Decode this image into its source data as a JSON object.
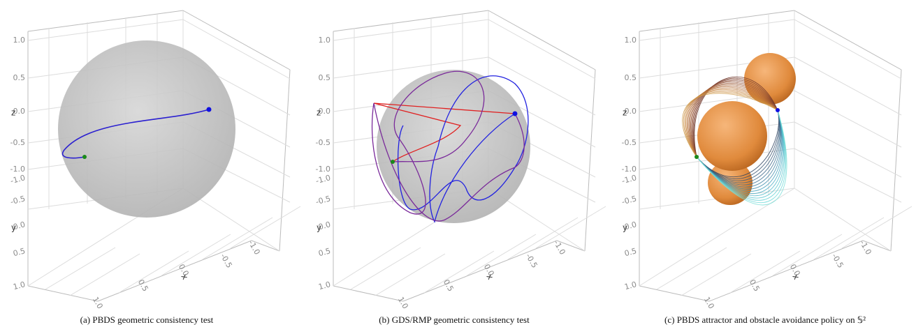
{
  "panels": [
    {
      "caption": "(a) PBDS geometric consistency test",
      "axes": {
        "x_label": "x",
        "y_label": "y",
        "z_label": "z",
        "x_ticks": [
          "1.0",
          "0.5",
          "0.0",
          "-0.5",
          "-1.0"
        ],
        "y_ticks": [
          "-1.0",
          "-0.5",
          "0.0",
          "0.5",
          "1.0"
        ],
        "z_ticks": [
          "1.0",
          "0.5",
          "0.0",
          "-0.5",
          "-1.0"
        ]
      }
    },
    {
      "caption": "(b) GDS/RMP geometric consistency test",
      "axes": {
        "x_label": "x",
        "y_label": "y",
        "z_label": "z",
        "x_ticks": [
          "1.0",
          "0.5",
          "0.0",
          "-0.5",
          "-1.0"
        ],
        "y_ticks": [
          "-1.0",
          "-0.5",
          "0.0",
          "0.5",
          "1.0"
        ],
        "z_ticks": [
          "1.0",
          "0.5",
          "0.0",
          "-0.5",
          "-1.0"
        ]
      }
    },
    {
      "caption": "(c) PBDS attractor and obstacle avoidance policy on 𝕊²",
      "axes": {
        "x_label": "x",
        "y_label": "y",
        "z_label": "z",
        "x_ticks": [
          "1.0",
          "0.5",
          "0.0",
          "-0.5",
          "-1.0"
        ],
        "y_ticks": [
          "-1.0",
          "-0.5",
          "0.0",
          "0.5",
          "1.0"
        ],
        "z_ticks": [
          "1.0",
          "0.5",
          "0.0",
          "-0.5",
          "-1.0"
        ]
      }
    }
  ]
}
